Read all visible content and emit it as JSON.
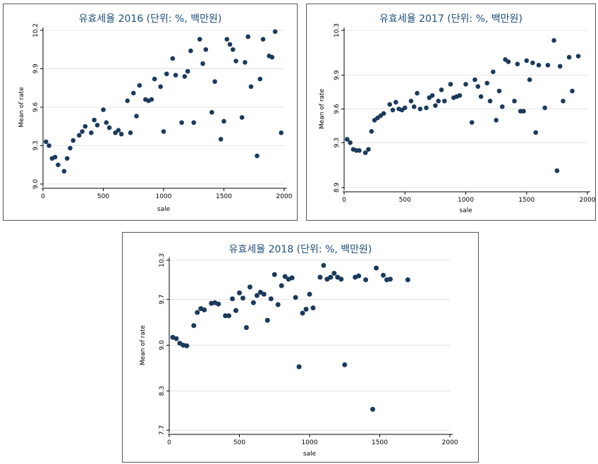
{
  "chart_data": [
    {
      "type": "scatter",
      "title": "유효세율 2016 (단위: %, 백만원)",
      "xlabel": "sale",
      "ylabel": "Mean of rate",
      "xlim": [
        0,
        2000
      ],
      "ylim": [
        9.0,
        10.2
      ],
      "xticks": [
        0,
        500,
        1000,
        1500,
        2000
      ],
      "xtick_labels": [
        "0",
        "500",
        "1000",
        "1500",
        "2000"
      ],
      "yticks": [
        9.0,
        9.3,
        9.6,
        9.9,
        10.2
      ],
      "ytick_labels": [
        "9.0",
        "9.3",
        "9.6",
        "9.9",
        "10.2"
      ],
      "grid": true,
      "color": "#1b3a5c",
      "points": [
        [
          25,
          9.33
        ],
        [
          50,
          9.3
        ],
        [
          75,
          9.2
        ],
        [
          100,
          9.21
        ],
        [
          125,
          9.15
        ],
        [
          175,
          9.1
        ],
        [
          200,
          9.2
        ],
        [
          225,
          9.28
        ],
        [
          250,
          9.34
        ],
        [
          300,
          9.38
        ],
        [
          325,
          9.41
        ],
        [
          350,
          9.45
        ],
        [
          400,
          9.4
        ],
        [
          425,
          9.5
        ],
        [
          450,
          9.46
        ],
        [
          500,
          9.58
        ],
        [
          525,
          9.48
        ],
        [
          550,
          9.44
        ],
        [
          600,
          9.4
        ],
        [
          625,
          9.42
        ],
        [
          650,
          9.39
        ],
        [
          700,
          9.65
        ],
        [
          725,
          9.4
        ],
        [
          750,
          9.71
        ],
        [
          775,
          9.53
        ],
        [
          800,
          9.77
        ],
        [
          850,
          9.66
        ],
        [
          875,
          9.65
        ],
        [
          900,
          9.66
        ],
        [
          925,
          9.82
        ],
        [
          975,
          9.76
        ],
        [
          1000,
          9.41
        ],
        [
          1025,
          9.86
        ],
        [
          1075,
          9.98
        ],
        [
          1100,
          9.85
        ],
        [
          1150,
          9.48
        ],
        [
          1175,
          9.84
        ],
        [
          1200,
          9.88
        ],
        [
          1225,
          10.04
        ],
        [
          1250,
          9.48
        ],
        [
          1300,
          10.13
        ],
        [
          1325,
          9.94
        ],
        [
          1350,
          10.05
        ],
        [
          1400,
          9.56
        ],
        [
          1425,
          9.8
        ],
        [
          1475,
          9.35
        ],
        [
          1500,
          9.49
        ],
        [
          1525,
          10.13
        ],
        [
          1550,
          10.09
        ],
        [
          1575,
          10.05
        ],
        [
          1600,
          9.96
        ],
        [
          1650,
          9.52
        ],
        [
          1675,
          9.95
        ],
        [
          1700,
          10.15
        ],
        [
          1725,
          9.76
        ],
        [
          1775,
          9.22
        ],
        [
          1800,
          9.82
        ],
        [
          1825,
          10.13
        ],
        [
          1875,
          10.0
        ],
        [
          1900,
          9.99
        ],
        [
          1925,
          10.19
        ],
        [
          1975,
          9.4
        ]
      ]
    },
    {
      "type": "scatter",
      "title": "유효세율 2017 (단위: %, 백만원)",
      "xlabel": "sale",
      "ylabel": "Mean of rate",
      "xlim": [
        0,
        2000
      ],
      "ylim": [
        8.9,
        10.3
      ],
      "xticks": [
        0,
        500,
        1000,
        1500,
        2000
      ],
      "xtick_labels": [
        "0",
        "500",
        "1000",
        "1500",
        "2000"
      ],
      "yticks": [
        8.9,
        9.3,
        9.6,
        9.9,
        10.3
      ],
      "ytick_labels": [
        "8.9",
        "9.3",
        "9.6",
        "9.9",
        "10.3"
      ],
      "grid": true,
      "color": "#1b3a5c",
      "points": [
        [
          25,
          9.33
        ],
        [
          50,
          9.3
        ],
        [
          75,
          9.24
        ],
        [
          100,
          9.23
        ],
        [
          125,
          9.23
        ],
        [
          175,
          9.21
        ],
        [
          200,
          9.24
        ],
        [
          225,
          9.4
        ],
        [
          250,
          9.5
        ],
        [
          275,
          9.52
        ],
        [
          300,
          9.54
        ],
        [
          325,
          9.56
        ],
        [
          375,
          9.64
        ],
        [
          400,
          9.59
        ],
        [
          425,
          9.66
        ],
        [
          450,
          9.6
        ],
        [
          475,
          9.59
        ],
        [
          500,
          9.61
        ],
        [
          550,
          9.67
        ],
        [
          575,
          9.62
        ],
        [
          600,
          9.74
        ],
        [
          625,
          9.6
        ],
        [
          675,
          9.61
        ],
        [
          700,
          9.7
        ],
        [
          725,
          9.72
        ],
        [
          750,
          9.63
        ],
        [
          775,
          9.67
        ],
        [
          800,
          9.77
        ],
        [
          825,
          9.67
        ],
        [
          875,
          9.82
        ],
        [
          900,
          9.7
        ],
        [
          925,
          9.71
        ],
        [
          950,
          9.72
        ],
        [
          1000,
          9.82
        ],
        [
          1050,
          9.48
        ],
        [
          1075,
          9.86
        ],
        [
          1100,
          9.8
        ],
        [
          1125,
          9.71
        ],
        [
          1175,
          9.83
        ],
        [
          1200,
          9.67
        ],
        [
          1225,
          9.93
        ],
        [
          1250,
          9.5
        ],
        [
          1275,
          9.76
        ],
        [
          1300,
          9.62
        ],
        [
          1325,
          10.04
        ],
        [
          1350,
          10.02
        ],
        [
          1400,
          9.67
        ],
        [
          1425,
          10.0
        ],
        [
          1450,
          9.58
        ],
        [
          1475,
          9.58
        ],
        [
          1500,
          10.03
        ],
        [
          1525,
          9.86
        ],
        [
          1550,
          10.01
        ],
        [
          1575,
          9.39
        ],
        [
          1600,
          9.99
        ],
        [
          1650,
          9.61
        ],
        [
          1675,
          9.99
        ],
        [
          1725,
          10.21
        ],
        [
          1750,
          9.05
        ],
        [
          1775,
          9.98
        ],
        [
          1800,
          9.67
        ],
        [
          1850,
          10.06
        ],
        [
          1875,
          9.76
        ],
        [
          1925,
          10.07
        ]
      ]
    },
    {
      "type": "scatter",
      "title": "유효세율 2018 (단위: %, 백만원)",
      "xlabel": "sale",
      "ylabel": "Mean of rate",
      "xlim": [
        0,
        2000
      ],
      "ylim": [
        7.7,
        10.3
      ],
      "xticks": [
        0,
        500,
        1000,
        1500,
        2000
      ],
      "xtick_labels": [
        "0",
        "500",
        "1000",
        "1500",
        "2000"
      ],
      "yticks": [
        7.7,
        8.3,
        9.0,
        9.7,
        10.3
      ],
      "ytick_labels": [
        "7.7",
        "8.3",
        "9.0",
        "9.7",
        "10.3"
      ],
      "grid": true,
      "color": "#1b3a5c",
      "points": [
        [
          25,
          9.12
        ],
        [
          50,
          9.1
        ],
        [
          75,
          9.03
        ],
        [
          100,
          9.0
        ],
        [
          125,
          8.99
        ],
        [
          175,
          9.3
        ],
        [
          200,
          9.5
        ],
        [
          225,
          9.56
        ],
        [
          250,
          9.54
        ],
        [
          300,
          9.64
        ],
        [
          325,
          9.65
        ],
        [
          350,
          9.63
        ],
        [
          400,
          9.45
        ],
        [
          425,
          9.45
        ],
        [
          450,
          9.71
        ],
        [
          475,
          9.53
        ],
        [
          500,
          9.8
        ],
        [
          525,
          9.72
        ],
        [
          550,
          9.27
        ],
        [
          575,
          9.89
        ],
        [
          600,
          9.65
        ],
        [
          625,
          9.76
        ],
        [
          650,
          9.81
        ],
        [
          675,
          9.78
        ],
        [
          700,
          9.38
        ],
        [
          725,
          9.71
        ],
        [
          750,
          10.08
        ],
        [
          775,
          9.62
        ],
        [
          800,
          9.91
        ],
        [
          825,
          10.05
        ],
        [
          850,
          10.01
        ],
        [
          875,
          10.03
        ],
        [
          900,
          9.73
        ],
        [
          925,
          8.67
        ],
        [
          950,
          9.49
        ],
        [
          975,
          9.55
        ],
        [
          1000,
          9.78
        ],
        [
          1025,
          9.57
        ],
        [
          1075,
          10.04
        ],
        [
          1100,
          10.22
        ],
        [
          1125,
          10.01
        ],
        [
          1150,
          10.04
        ],
        [
          1175,
          10.1
        ],
        [
          1200,
          10.04
        ],
        [
          1225,
          10.01
        ],
        [
          1250,
          8.7
        ],
        [
          1325,
          10.04
        ],
        [
          1350,
          10.06
        ],
        [
          1400,
          10.0
        ],
        [
          1450,
          8.02
        ],
        [
          1475,
          10.18
        ],
        [
          1525,
          10.07
        ],
        [
          1550,
          10.0
        ],
        [
          1575,
          10.01
        ],
        [
          1700,
          10.0
        ]
      ]
    }
  ]
}
